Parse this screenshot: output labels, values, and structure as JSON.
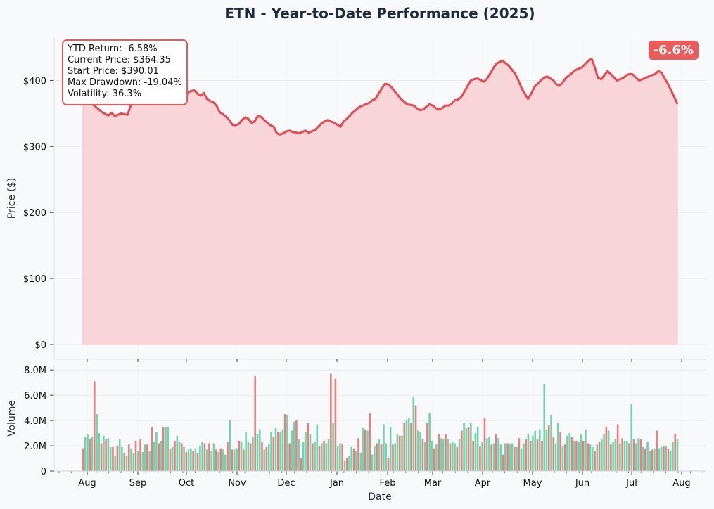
{
  "chart_data": [
    {
      "type": "area",
      "title": "ETN - Year-to-Date Performance (2025)",
      "xlabel": "",
      "ylabel": "Price ($)",
      "ylim": [
        0,
        458
      ],
      "yticks": [
        0,
        100,
        200,
        300,
        400
      ],
      "ytick_labels": [
        "$0",
        "$100",
        "$200",
        "$300",
        "$400"
      ],
      "grid": true,
      "colors": {
        "line": "#e8484e",
        "fill": "#f7d5d8"
      },
      "series": [
        {
          "values": [
            390,
            380,
            372,
            364,
            360,
            356,
            352,
            349,
            347,
            351,
            346,
            348,
            350,
            349,
            348,
            362,
            366,
            370,
            374,
            372,
            378,
            376,
            381,
            379,
            376,
            375,
            372,
            374,
            378,
            377,
            380,
            372,
            368,
            382,
            384,
            385,
            380,
            377,
            381,
            372,
            369,
            367,
            362,
            352,
            349,
            345,
            340,
            333,
            332,
            334,
            340,
            344,
            342,
            336,
            338,
            346,
            345,
            340,
            336,
            332,
            330,
            320,
            318,
            320,
            323,
            324,
            322,
            321,
            320,
            322,
            324,
            321,
            323,
            325,
            330,
            335,
            338,
            340,
            338,
            336,
            333,
            330,
            338,
            342,
            347,
            352,
            356,
            360,
            362,
            364,
            366,
            370,
            372,
            380,
            388,
            395,
            394,
            390,
            384,
            378,
            372,
            368,
            364,
            363,
            362,
            358,
            355,
            356,
            360,
            364,
            362,
            358,
            356,
            358,
            362,
            362,
            365,
            370,
            371,
            375,
            383,
            392,
            400,
            402,
            403,
            401,
            398,
            402,
            410,
            418,
            425,
            428,
            430,
            426,
            422,
            416,
            410,
            400,
            388,
            380,
            372,
            380,
            390,
            395,
            400,
            404,
            406,
            403,
            400,
            394,
            392,
            398,
            404,
            408,
            412,
            416,
            418,
            420,
            425,
            430,
            433,
            420,
            404,
            402,
            408,
            414,
            410,
            405,
            400,
            402,
            404,
            408,
            410,
            409,
            404,
            400,
            402,
            404,
            406,
            408,
            410,
            414,
            412,
            403,
            395,
            385,
            375,
            364.35
          ]
        }
      ]
    },
    {
      "type": "bar",
      "xlabel": "Date",
      "ylabel": "Volume",
      "ylim": [
        0,
        8400000
      ],
      "yticks": [
        0,
        2000000,
        4000000,
        6000000,
        8000000
      ],
      "ytick_labels": [
        "0",
        "2.0M",
        "4.0M",
        "6.0M",
        "8.0M"
      ],
      "x_tick_labels": [
        "Aug",
        "Sep",
        "Oct",
        "Nov",
        "Dec",
        "Jan",
        "Feb",
        "Mar",
        "Apr",
        "May",
        "Jun",
        "Jul",
        "Aug"
      ],
      "grid": true,
      "colors": {
        "up": "#5ccb9b",
        "down": "#e86a6a"
      },
      "values": [
        1.8,
        2.7,
        2.9,
        2.5,
        2.7,
        7.1,
        4.5,
        3.0,
        2.2,
        2.8,
        2.5,
        2.6,
        1.9,
        1.9,
        1.2,
        2.0,
        2.5,
        1.9,
        1.4,
        1.2,
        2.1,
        1.8,
        1.4,
        2.4,
        1.6,
        2.5,
        1.5,
        2.1,
        2.1,
        1.6,
        3.5,
        2.3,
        3.1,
        2.2,
        2.4,
        3.5,
        3.5,
        3.5,
        1.8,
        1.9,
        2.4,
        2.8,
        2.3,
        2.2,
        1.9,
        1.5,
        1.7,
        1.8,
        1.6,
        1.8,
        1.4,
        2.0,
        2.3,
        2.2,
        1.7,
        2.2,
        1.6,
        2.2,
        1.7,
        1.5,
        1.8,
        1.7,
        1.3,
        2.3,
        4.0,
        1.7,
        1.7,
        1.8,
        2.4,
        2.3,
        1.7,
        3.1,
        2.3,
        2.2,
        2.7,
        7.5,
        2.9,
        3.3,
        2.3,
        1.7,
        1.9,
        2.1,
        3.1,
        2.7,
        3.4,
        3.1,
        3.1,
        3.3,
        4.5,
        4.4,
        2.2,
        3.2,
        3.9,
        4.0,
        2.5,
        1.0,
        2.3,
        3.1,
        3.8,
        2.9,
        2.2,
        2.3,
        3.7,
        2.0,
        2.2,
        2.4,
        2.2,
        2.5,
        7.7,
        3.8,
        7.3,
        2.0,
        2.2,
        2.1,
        0.8,
        1.0,
        1.2,
        1.9,
        1.8,
        1.6,
        2.6,
        1.4,
        3.4,
        3.3,
        3.2,
        4.6,
        1.3,
        2.0,
        2.2,
        2.5,
        2.1,
        3.7,
        2.2,
        1.0,
        3.5,
        2.1,
        2.2,
        2.9,
        2.8,
        2.8,
        3.8,
        4.0,
        4.2,
        3.8,
        5.9,
        5.2,
        3.2,
        3.1,
        2.5,
        2.3,
        3.8,
        4.6,
        2.4,
        1.8,
        2.1,
        2.9,
        2.6,
        2.5,
        2.9,
        2.5,
        2.2,
        2.3,
        2.2,
        1.9,
        2.5,
        3.2,
        3.8,
        3.4,
        3.5,
        3.8,
        2.4,
        3.0,
        3.5,
        2.0,
        2.3,
        4.2,
        2.6,
        2.7,
        2.1,
        2.2,
        2.9,
        2.6,
        2.1,
        1.3,
        2.2,
        2.2,
        2.1,
        2.2,
        1.9,
        1.9,
        2.6,
        1.8,
        2.2,
        2.5,
        2.9,
        2.4,
        2.8,
        3.2,
        2.5,
        3.3,
        2.4,
        6.9,
        3.3,
        3.6,
        4.4,
        2.7,
        2.2,
        3.8,
        3.1,
        2.0,
        2.1,
        2.8,
        3.0,
        2.7,
        2.4,
        2.4,
        2.3,
        2.9,
        2.4,
        3.3,
        2.2,
        2.1,
        1.9,
        1.6,
        2.1,
        2.3,
        2.5,
        2.9,
        3.5,
        3.2,
        2.1,
        2.3,
        2.5,
        3.7,
        2.2,
        2.6,
        2.4,
        2.4,
        2.2,
        5.3,
        2.5,
        2.2,
        2.6,
        2.5,
        1.9,
        1.8,
        2.3,
        1.6,
        1.7,
        1.8,
        3.2,
        1.8,
        1.9,
        2.0,
        2.0,
        1.8,
        1.6,
        2.3,
        2.9,
        2.5
      ]
    }
  ],
  "stats": {
    "ytd_return": "YTD Return: -6.58%",
    "current_price": "Current Price: $364.35",
    "start_price": "Start Price: $390.01",
    "max_drawdown": "Max Drawdown: -19.04%",
    "volatility": "Volatility: 36.3%"
  },
  "badge": "-6.6%"
}
